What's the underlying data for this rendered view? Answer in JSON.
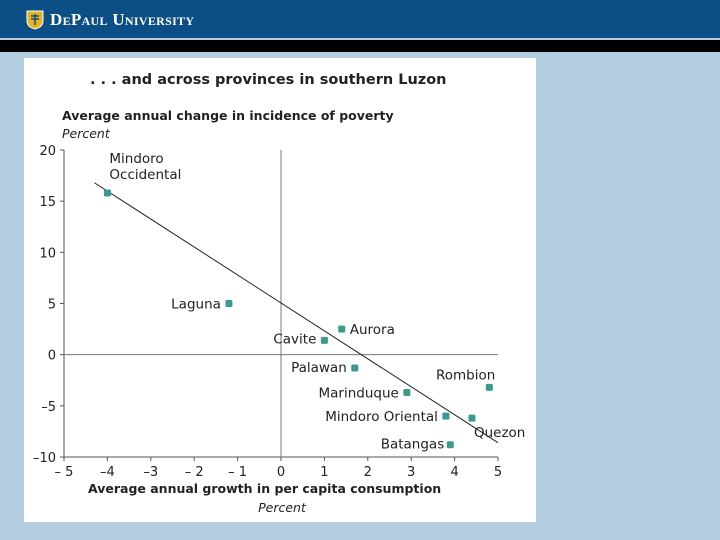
{
  "header": {
    "logo_text": "DePaul University",
    "brand_color": "#0b4f86"
  },
  "chart_data": {
    "type": "scatter",
    "title": ". . . and across provinces in southern Luzon",
    "ylabel": "Average annual change in incidence of poverty",
    "ylabel_unit": "Percent",
    "xlabel": "Average annual growth in per capita consumption",
    "xlabel_unit": "Percent",
    "xlim": [
      -5,
      5
    ],
    "ylim": [
      -10,
      20
    ],
    "xticks": [
      -5,
      -4,
      -3,
      -2,
      -1,
      0,
      1,
      2,
      3,
      4,
      5
    ],
    "xtick_labels": [
      "– 5",
      "–4",
      "–3",
      "– 2",
      "– 1",
      "0",
      "1",
      "2",
      "3",
      "4",
      "5"
    ],
    "yticks": [
      20,
      15,
      10,
      5,
      0,
      -5,
      -10
    ],
    "ytick_labels": [
      "20",
      "15",
      "10",
      "5",
      "0",
      "–5",
      "–10"
    ],
    "marker_color": "#3a9a8c",
    "points": [
      {
        "name": "Mindoro Occidental",
        "x": -4.0,
        "y": 15.8
      },
      {
        "name": "Laguna",
        "x": -1.2,
        "y": 5.0
      },
      {
        "name": "Aurora",
        "x": 1.4,
        "y": 2.5
      },
      {
        "name": "Cavite",
        "x": 1.0,
        "y": 1.4
      },
      {
        "name": "Palawan",
        "x": 1.7,
        "y": -1.3
      },
      {
        "name": "Rombion",
        "x": 4.8,
        "y": -3.2
      },
      {
        "name": "Marinduque",
        "x": 2.9,
        "y": -3.7
      },
      {
        "name": "Mindoro Oriental",
        "x": 3.8,
        "y": -6.0
      },
      {
        "name": "Quezon",
        "x": 4.4,
        "y": -6.2
      },
      {
        "name": "Batangas",
        "x": 3.9,
        "y": -8.8
      }
    ],
    "trendline": {
      "x": [
        -4.3,
        5.0
      ],
      "y": [
        16.8,
        -8.6
      ]
    }
  }
}
